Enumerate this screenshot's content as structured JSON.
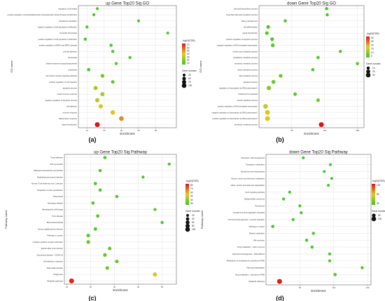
{
  "chart_data": [
    {
      "panel": "(a)",
      "type": "scatter",
      "title": "up Gene Top20 Sig GO",
      "xlabel": "Enrichment",
      "ylabel": "GO name",
      "xlim": [
        5,
        62
      ],
      "xticks": [
        10,
        20,
        30,
        40,
        50
      ],
      "color_legend": {
        "title": "-log10(FDR)",
        "ticks": [
          "70",
          "60",
          "50",
          "40",
          "30",
          "20",
          "10"
        ],
        "min": 5,
        "max": 72
      },
      "size_legend": {
        "title": "Gene number",
        "values": [
          25,
          50,
          75,
          100
        ]
      },
      "categories": [
        "regulation of cell shape",
        "positive regulation of phosphatidylinositol 3-kinase/protein kinase B signal transduction",
        "cytoplasmic translation",
        "negative regulation of cell population proliferation",
        "neutrophil chemotaxis",
        "positive regulation of cell population proliferation",
        "positive regulation of ERK1 and ERK2 cascade",
        "cell-cell adhesion",
        "chemotaxis",
        "cellular response to lipopolysaccharide",
        "proteolysis",
        "cell surface receptor signaling pathway",
        "positive regulation of cell migration",
        "apoptotic process",
        "innate immune response",
        "negative regulation of apoptotic process",
        "cell adhesion",
        "immune response",
        "inflammatory response",
        "signal transduction"
      ],
      "points": [
        {
          "x": 16,
          "fdr": 8,
          "n": 22
        },
        {
          "x": 14,
          "fdr": 8,
          "n": 22
        },
        {
          "x": 40,
          "fdr": 8,
          "n": 20
        },
        {
          "x": 10,
          "fdr": 8,
          "n": 24
        },
        {
          "x": 57,
          "fdr": 8,
          "n": 18
        },
        {
          "x": 9,
          "fdr": 8,
          "n": 26
        },
        {
          "x": 24,
          "fdr": 9,
          "n": 28
        },
        {
          "x": 25,
          "fdr": 9,
          "n": 28
        },
        {
          "x": 35,
          "fdr": 8,
          "n": 26
        },
        {
          "x": 27,
          "fdr": 10,
          "n": 28
        },
        {
          "x": 11,
          "fdr": 10,
          "n": 34
        },
        {
          "x": 19,
          "fdr": 14,
          "n": 45
        },
        {
          "x": 25,
          "fdr": 12,
          "n": 40
        },
        {
          "x": 15,
          "fdr": 26,
          "n": 62
        },
        {
          "x": 19,
          "fdr": 27,
          "n": 62
        },
        {
          "x": 16,
          "fdr": 30,
          "n": 68
        },
        {
          "x": 18,
          "fdr": 34,
          "n": 70
        },
        {
          "x": 25,
          "fdr": 40,
          "n": 78
        },
        {
          "x": 30,
          "fdr": 50,
          "n": 84
        },
        {
          "x": 16,
          "fdr": 72,
          "n": 100
        }
      ]
    },
    {
      "panel": "(b)",
      "type": "scatter",
      "title": "down Gene Top20 Sig GO",
      "xlabel": "Enrichment",
      "ylabel": "GO name",
      "xlim": [
        0,
        160
      ],
      "xticks": [
        50,
        100,
        150
      ],
      "color_legend": {
        "title": "-log10(FDR)",
        "ticks": [
          "30",
          "25",
          "20",
          "15",
          "10",
          "5"
        ],
        "min": 3,
        "max": 32
      },
      "size_legend": {
        "title": "Gene number",
        "values": [
          10,
          20,
          30
        ]
      },
      "categories": [
        "bile acid biosynthetic process",
        "long-chain fatty acid metabolic process",
        "kidney development",
        "cell differentiation",
        "signal transduction",
        "positive regulation of apoptotic process",
        "negative regulation of DNA-templated transcription",
        "retinoic acid metabolic process",
        "glutathione metabolic process",
        "xenobiotic metabolic process",
        "retinol metabolic process",
        "lipid metabolic process",
        "apoptotic process",
        "regulation of transcription by RNA polymerase II",
        "cholesterol homeostasis",
        "steroid metabolic process",
        "positive regulation of DNA-templated transcription",
        "negative regulation of transcription by RNA polymerase II",
        "positive regulation of transcription by RNA polymerase II",
        "xenobiotic metabolic process"
      ],
      "points": [
        {
          "x": 103,
          "fdr": 4,
          "n": 8
        },
        {
          "x": 104,
          "fdr": 4,
          "n": 8
        },
        {
          "x": 40,
          "fdr": 4,
          "n": 8
        },
        {
          "x": 14,
          "fdr": 4,
          "n": 12
        },
        {
          "x": 12,
          "fdr": 5,
          "n": 12
        },
        {
          "x": 20,
          "fdr": 5,
          "n": 14
        },
        {
          "x": 21,
          "fdr": 5,
          "n": 14
        },
        {
          "x": 124,
          "fdr": 5,
          "n": 8
        },
        {
          "x": 90,
          "fdr": 5,
          "n": 9
        },
        {
          "x": 150,
          "fdr": 6,
          "n": 9
        },
        {
          "x": 82,
          "fdr": 5,
          "n": 9
        },
        {
          "x": 33,
          "fdr": 6,
          "n": 13
        },
        {
          "x": 22,
          "fdr": 7,
          "n": 16
        },
        {
          "x": 15,
          "fdr": 9,
          "n": 20
        },
        {
          "x": 55,
          "fdr": 6,
          "n": 12
        },
        {
          "x": 90,
          "fdr": 7,
          "n": 12
        },
        {
          "x": 10,
          "fdr": 15,
          "n": 26
        },
        {
          "x": 13,
          "fdr": 16,
          "n": 28
        },
        {
          "x": 13,
          "fdr": 18,
          "n": 30
        },
        {
          "x": 95,
          "fdr": 32,
          "n": 30
        }
      ]
    },
    {
      "panel": "(c)",
      "type": "scatter",
      "title": "up Gene Top20 Sig Pathway",
      "xlabel": "Enrichment",
      "ylabel": "Pathway name",
      "xlim": [
        9,
        56
      ],
      "xticks": [
        10,
        20,
        30,
        40,
        50
      ],
      "color_legend": {
        "title": "-log10(FDR)",
        "ticks": [
          "80",
          "70",
          "60",
          "50",
          "40",
          "30"
        ],
        "min": 25,
        "max": 85
      },
      "size_legend": {
        "title": "Gene number",
        "values": [
          20,
          40,
          60,
          80,
          100
        ]
      },
      "categories": [
        "Focal adhesion",
        "Viral myocarditis",
        "Pathogenic Escherichia coli infection",
        "Staphylococcus aureus infection",
        "Human T-cell leukemia virus 1 infection",
        "Regulation of actin cytoskeleton",
        "Tuberculosis",
        "Huntington disease",
        "Hematopoietic cell lineage",
        "Prion disease",
        "Rheumatoid arthritis",
        "Human papillomavirus infection",
        "Pathways in cancer",
        "Cytokine-cytokine receptor interaction",
        "Epstein-Barr virus infection",
        "Coronavirus disease - COVID-19",
        "Cell adhesion molecules",
        "Salmonella infection",
        "Phagosome",
        "Metabolic pathways"
      ],
      "points": [
        {
          "x": 26,
          "fdr": 28,
          "n": 28
        },
        {
          "x": 53,
          "fdr": 27,
          "n": 22
        },
        {
          "x": 24,
          "fdr": 28,
          "n": 28
        },
        {
          "x": 42,
          "fdr": 27,
          "n": 22
        },
        {
          "x": 22,
          "fdr": 29,
          "n": 32
        },
        {
          "x": 24,
          "fdr": 29,
          "n": 32
        },
        {
          "x": 31,
          "fdr": 29,
          "n": 30
        },
        {
          "x": 21,
          "fdr": 29,
          "n": 32
        },
        {
          "x": 47,
          "fdr": 29,
          "n": 24
        },
        {
          "x": 23,
          "fdr": 30,
          "n": 34
        },
        {
          "x": 50,
          "fdr": 30,
          "n": 26
        },
        {
          "x": 22,
          "fdr": 30,
          "n": 36
        },
        {
          "x": 19,
          "fdr": 32,
          "n": 44
        },
        {
          "x": 19,
          "fdr": 33,
          "n": 46
        },
        {
          "x": 28,
          "fdr": 32,
          "n": 40
        },
        {
          "x": 26,
          "fdr": 32,
          "n": 42
        },
        {
          "x": 31,
          "fdr": 32,
          "n": 40
        },
        {
          "x": 27,
          "fdr": 33,
          "n": 42
        },
        {
          "x": 47,
          "fdr": 52,
          "n": 62
        },
        {
          "x": 12,
          "fdr": 82,
          "n": 100
        }
      ]
    },
    {
      "panel": "(d)",
      "type": "scatter",
      "title": "down Gene Top20 Sig Pathway",
      "xlabel": "Enrichment",
      "ylabel": "Pathway name",
      "xlim": [
        0,
        155
      ],
      "xticks": [
        50,
        100,
        150
      ],
      "color_legend": {
        "title": "-log10(FDR)",
        "ticks": [
          "120",
          "80",
          "40"
        ],
        "min": 10,
        "max": 135
      },
      "size_legend": {
        "title": "Gene number",
        "values": [
          50,
          100
        ]
      },
      "categories": [
        "Glycolysis / Gluconeogenesis",
        "Tryptophan metabolism",
        "Steroid hormone biosynthesis",
        "Glycine, serine and threonine metabolism",
        "Valine, leucine and isoleucine degradation",
        "FoxO signaling pathway",
        "Hepatocellular carcinoma",
        "Peroxisome",
        "Complement and coagulation cascades",
        "Chemical carcinogenesis - receptor activation",
        "Pathways in cancer",
        "Retinol metabolism",
        "Bile secretion",
        "Drug metabolism - other enzymes",
        "Chemical carcinogenesis - DNA adducts",
        "Metabolism of xenobiotics by cytochrome P450",
        "Fatty acid degradation",
        "Drug metabolism - cytochrome P450",
        "Metabolic pathways"
      ],
      "points": [
        {
          "x": 55,
          "fdr": 12,
          "n": 20
        },
        {
          "x": 95,
          "fdr": 12,
          "n": 20
        },
        {
          "x": 86,
          "fdr": 12,
          "n": 20
        },
        {
          "x": 97,
          "fdr": 12,
          "n": 20
        },
        {
          "x": 92,
          "fdr": 12,
          "n": 20
        },
        {
          "x": 35,
          "fdr": 13,
          "n": 22
        },
        {
          "x": 26,
          "fdr": 13,
          "n": 22
        },
        {
          "x": 50,
          "fdr": 13,
          "n": 22
        },
        {
          "x": 52,
          "fdr": 13,
          "n": 22
        },
        {
          "x": 40,
          "fdr": 14,
          "n": 24
        },
        {
          "x": 10,
          "fdr": 14,
          "n": 28
        },
        {
          "x": 70,
          "fdr": 16,
          "n": 26
        },
        {
          "x": 60,
          "fdr": 15,
          "n": 26
        },
        {
          "x": 68,
          "fdr": 16,
          "n": 26
        },
        {
          "x": 94,
          "fdr": 16,
          "n": 24
        },
        {
          "x": 94,
          "fdr": 16,
          "n": 24
        },
        {
          "x": 142,
          "fdr": 16,
          "n": 24
        },
        {
          "x": 102,
          "fdr": 18,
          "n": 30
        },
        {
          "x": 20,
          "fdr": 132,
          "n": 100
        }
      ]
    }
  ],
  "panel_layout": [
    {
      "plot": [
        112,
        8,
        252,
        182
      ],
      "ylabel_x": 18,
      "legend_x": 260,
      "legend_y": 62,
      "letter": [
        132,
        202
      ]
    },
    {
      "plot": [
        370,
        8,
        520,
        182
      ],
      "ylabel_x": 288,
      "legend_x": 523,
      "legend_y": 52,
      "letter": [
        400,
        202
      ]
    },
    {
      "plot": [
        92,
        220,
        252,
        405
      ],
      "ylabel_x": 10,
      "legend_x": 265,
      "legend_y": 262,
      "letter": [
        132,
        428
      ]
    },
    {
      "plot": [
        380,
        220,
        530,
        406
      ],
      "ylabel_x": 290,
      "legend_x": 531,
      "legend_y": 262,
      "letter": [
        400,
        428
      ]
    }
  ]
}
